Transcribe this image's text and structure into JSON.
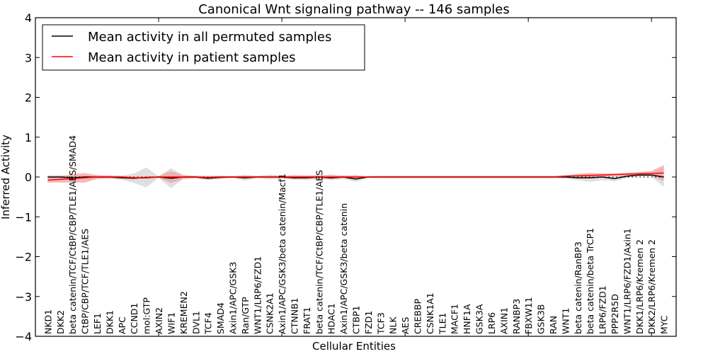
{
  "chart_data": {
    "type": "line",
    "title": "Canonical Wnt signaling pathway -- 146 samples",
    "xlabel": "Cellular Entities",
    "ylabel": "Inferred Activity",
    "ylim": [
      -4,
      4
    ],
    "xlim": [
      0,
      52
    ],
    "yticks": [
      -4,
      -3,
      -2,
      -1,
      0,
      1,
      2,
      3,
      4
    ],
    "ytick_labels": [
      "−4",
      "−3",
      "−2",
      "−1",
      "0",
      "1",
      "2",
      "3",
      "4"
    ],
    "legend_position": "top-left",
    "baseline": 0,
    "categories": [
      "NKD1",
      "DKK2",
      "beta catenin/TCF/CtBP/CBP/TLE1/AES/SMAD4",
      "CtBP/CBP/TCF/TLE1/AES",
      "LEF1",
      "DKK1",
      "APC",
      "CCND1",
      "mol:GTP",
      "AXIN2",
      "WIF1",
      "KREMEN2",
      "DVL1",
      "TCF4",
      "SMAD4",
      "Axin1/APC/GSK3",
      "Ran/GTP",
      "WNT1/LRP6/FZD1",
      "CSNK2A1",
      "Axin1/APC/GSK3/beta catenin/Macf1",
      "CTNNB1",
      "FRAT1",
      "beta catenin/TCF/CtBP/CBP/TLE1/AES",
      "HDAC1",
      "Axin1/APC/GSK3/beta catenin",
      "CTBP1",
      "FZD1",
      "TCF3",
      "NLK",
      "AES",
      "CREBBP",
      "CSNK1A1",
      "TLE1",
      "MACF1",
      "HNF1A",
      "GSK3A",
      "LRP6",
      "AXIN1",
      "RANBP3",
      "FBXW11",
      "GSK3B",
      "RAN",
      "WNT1",
      "beta catenin/RanBP3",
      "beta catenin/beta TrCP1",
      "LRP6/FZD1",
      "PPP2R5D",
      "WNT1/LRP6/FZD1/Axin1",
      "DKK1/LRP6/Kremen 2",
      "DKK2/LRP6/Kremen 2",
      "MYC"
    ],
    "series": [
      {
        "name": "Mean activity in all permuted samples",
        "color": "#000000",
        "band_color": "#d9d9d9",
        "values": [
          0,
          0,
          -0.02,
          0,
          0,
          0,
          -0.02,
          -0.03,
          -0.01,
          0,
          -0.03,
          0,
          0,
          -0.03,
          -0.01,
          0,
          -0.02,
          0,
          0,
          0,
          -0.02,
          -0.02,
          0,
          -0.02,
          0,
          -0.05,
          0,
          0,
          0,
          0,
          0,
          0,
          0,
          0,
          0,
          0,
          0,
          0,
          0,
          0,
          0,
          0,
          0,
          -0.02,
          -0.02,
          0,
          -0.04,
          0.02,
          0.05,
          0.05,
          0
        ],
        "band": [
          0.05,
          0.05,
          0.05,
          0.05,
          0.04,
          0.04,
          0.05,
          0.12,
          0.25,
          0.02,
          0.25,
          0.05,
          0.03,
          0.05,
          0.04,
          0.02,
          0.07,
          0.03,
          0.06,
          0.04,
          0.05,
          0.06,
          0.05,
          0.05,
          0.05,
          0.07,
          0.03,
          0.04,
          0.04,
          0.04,
          0.04,
          0.04,
          0.04,
          0.04,
          0.04,
          0.04,
          0.04,
          0.04,
          0.04,
          0.04,
          0.04,
          0.04,
          0.04,
          0.06,
          0.1,
          0.08,
          0.07,
          0.04,
          0.04,
          0.04,
          0.25
        ]
      },
      {
        "name": "Mean activity in patient samples",
        "color": "#ff0000",
        "band_color": "#f4a0a0",
        "values": [
          -0.08,
          -0.06,
          -0.04,
          -0.02,
          0,
          0,
          0,
          -0.02,
          -0.02,
          0,
          0,
          0,
          0,
          -0.01,
          0,
          0,
          0,
          0,
          0,
          0,
          0,
          0,
          0,
          0,
          0,
          0,
          0,
          0,
          0,
          0,
          0,
          0,
          0,
          0,
          0,
          0,
          0,
          0,
          0,
          0,
          0,
          0,
          0.02,
          0.03,
          0.04,
          0.05,
          0.06,
          0.07,
          0.08,
          0.09,
          0.1
        ],
        "band": [
          0.06,
          0.08,
          0.1,
          0.12,
          0.05,
          0.04,
          0.03,
          0.03,
          0.03,
          0.02,
          0.15,
          0.05,
          0.03,
          0.04,
          0.03,
          0.02,
          0.04,
          0.02,
          0.03,
          0.03,
          0.05,
          0.04,
          0.04,
          0.06,
          0.03,
          0.05,
          0.01,
          0.01,
          0.01,
          0.01,
          0.01,
          0.01,
          0.01,
          0.01,
          0.01,
          0.01,
          0.01,
          0.01,
          0.01,
          0.01,
          0.01,
          0.01,
          0.02,
          0.05,
          0.06,
          0.04,
          0.03,
          0.04,
          0.05,
          0.06,
          0.2
        ]
      }
    ]
  }
}
